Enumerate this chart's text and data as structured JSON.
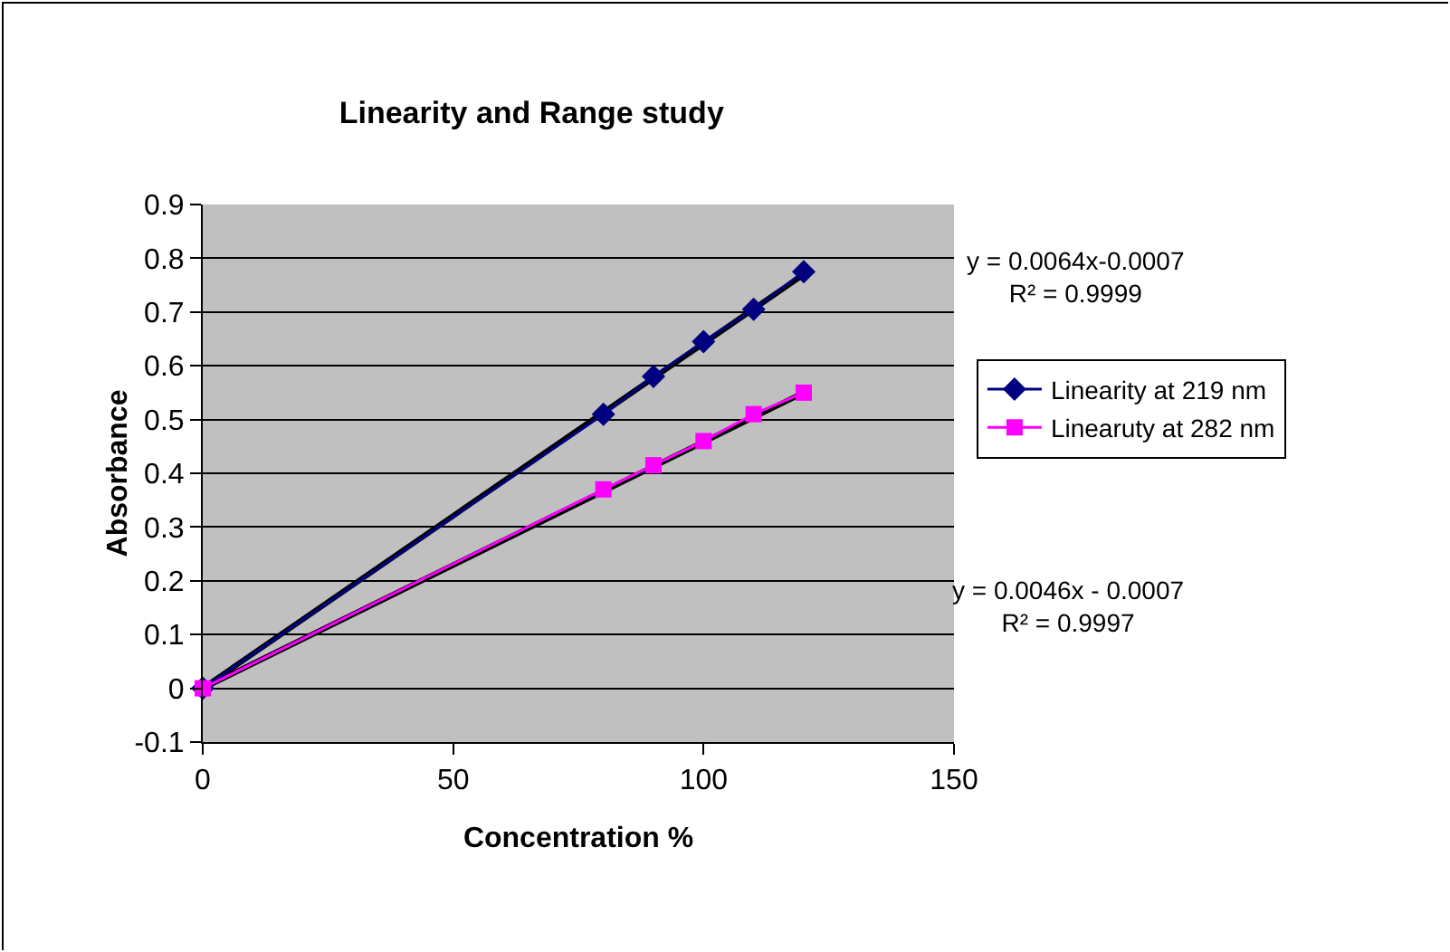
{
  "chart_data": {
    "type": "line",
    "title": "Linearity and Range study",
    "xlabel": "Concentration %",
    "ylabel": "Absorbance",
    "xlim": [
      0,
      150
    ],
    "xticks": [
      0,
      50,
      100,
      150
    ],
    "ylim": [
      -0.1,
      0.9
    ],
    "yticks": [
      -0.1,
      0,
      0.1,
      0.2,
      0.3,
      0.4,
      0.5,
      0.6,
      0.7,
      0.8,
      0.9
    ],
    "grid": "y",
    "legend": "right",
    "series": [
      {
        "type": "line",
        "color": "#000000",
        "marker": "none",
        "x": [
          0,
          120
        ],
        "values": [
          0,
          0.77
        ]
      },
      {
        "type": "line",
        "color": "#000000",
        "marker": "none",
        "x": [
          0,
          120
        ],
        "values": [
          0,
          0.55
        ]
      },
      {
        "name": "Linearity at 219 nm",
        "color": "#000080",
        "marker": "diamond",
        "x": [
          0,
          80,
          90,
          100,
          110,
          120
        ],
        "values": [
          0,
          0.51,
          0.58,
          0.645,
          0.705,
          0.775
        ]
      },
      {
        "name": "Linearuty at 282 nm",
        "color": "#ff00ff",
        "marker": "square",
        "x": [
          0,
          80,
          90,
          100,
          110,
          120
        ],
        "values": [
          0,
          0.37,
          0.415,
          0.46,
          0.51,
          0.55
        ]
      }
    ],
    "annotations": [
      "y = 0.0064x-0.0007\nR² = 0.9999",
      "y = 0.0046x - 0.0007\nR² = 0.9997"
    ]
  }
}
